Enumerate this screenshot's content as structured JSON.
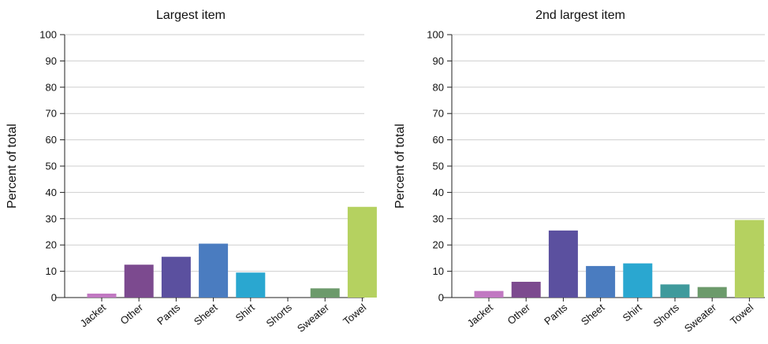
{
  "chart_data": [
    {
      "type": "bar",
      "title": "Largest item",
      "xlabel": "",
      "ylabel": "Percent of total",
      "ylim": [
        0,
        100
      ],
      "yticks": [
        "0",
        "10",
        "20",
        "30",
        "40",
        "50",
        "60",
        "70",
        "80",
        "90",
        "100"
      ],
      "categories": [
        "Jacket",
        "Other",
        "Pants",
        "Sheet",
        "Shirt",
        "Shorts",
        "Sweater",
        "Towel"
      ],
      "values": [
        1.5,
        12.5,
        15.5,
        20.5,
        9.5,
        0,
        3.5,
        34.5
      ],
      "colors": [
        "#c178c2",
        "#7c4a8f",
        "#5b509f",
        "#4a7cc0",
        "#2aa7d0",
        "#3f9a9c",
        "#6c9a6b",
        "#b5d160"
      ],
      "grid": true
    },
    {
      "type": "bar",
      "title": "2nd largest item",
      "xlabel": "",
      "ylabel": "Percent of total",
      "ylim": [
        0,
        100
      ],
      "yticks": [
        "0",
        "10",
        "20",
        "30",
        "40",
        "50",
        "60",
        "70",
        "80",
        "90",
        "100"
      ],
      "categories": [
        "Jacket",
        "Other",
        "Pants",
        "Sheet",
        "Shirt",
        "Shorts",
        "Sweater",
        "Towel"
      ],
      "values": [
        2.5,
        6,
        25.5,
        12,
        13,
        5,
        4,
        29.5
      ],
      "colors": [
        "#c178c2",
        "#7c4a8f",
        "#5b509f",
        "#4a7cc0",
        "#2aa7d0",
        "#3f9a9c",
        "#6c9a6b",
        "#b5d160"
      ],
      "grid": true
    }
  ]
}
